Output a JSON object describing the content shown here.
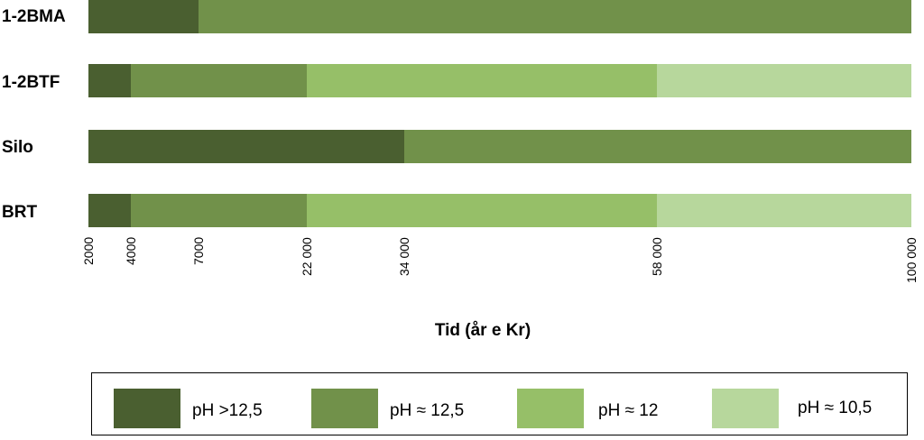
{
  "chart_data": {
    "type": "bar",
    "orientation": "horizontal-stacked-timeline",
    "xlabel": "Tid (år e Kr)",
    "x_scale": "log",
    "xlim": [
      2000,
      100000
    ],
    "x_ticks": [
      {
        "value": 2000,
        "label": "2000"
      },
      {
        "value": 4000,
        "label": "4000"
      },
      {
        "value": 7000,
        "label": "7000"
      },
      {
        "value": 22000,
        "label": "22 000"
      },
      {
        "value": 34000,
        "label": "34 000"
      },
      {
        "value": 58000,
        "label": "58 000"
      },
      {
        "value": 100000,
        "label": "100 000"
      }
    ],
    "categories": [
      "1-2BMA",
      "1-2BTF",
      "Silo",
      "BRT"
    ],
    "legend": {
      "placement": "bottom",
      "entries": [
        {
          "label": "pH >12,5",
          "color": "#4a5f30"
        },
        {
          "label": "pH ≈ 12,5",
          "color": "#71914a"
        },
        {
          "label": "pH ≈ 12",
          "color": "#96bf68"
        },
        {
          "label": "pH ≈ 10,5",
          "color": "#b7d79c"
        }
      ]
    },
    "bars": [
      {
        "category": "1-2BMA",
        "segments": [
          {
            "from": 2000,
            "to": 7000,
            "level": 0
          },
          {
            "from": 7000,
            "to": 100000,
            "level": 1
          }
        ]
      },
      {
        "category": "1-2BTF",
        "segments": [
          {
            "from": 2000,
            "to": 4000,
            "level": 0
          },
          {
            "from": 4000,
            "to": 22000,
            "level": 1
          },
          {
            "from": 22000,
            "to": 58000,
            "level": 2
          },
          {
            "from": 58000,
            "to": 100000,
            "level": 3
          }
        ]
      },
      {
        "category": "Silo",
        "segments": [
          {
            "from": 2000,
            "to": 34000,
            "level": 0
          },
          {
            "from": 34000,
            "to": 100000,
            "level": 1
          }
        ]
      },
      {
        "category": "BRT",
        "segments": [
          {
            "from": 2000,
            "to": 4000,
            "level": 0
          },
          {
            "from": 4000,
            "to": 22000,
            "level": 1
          },
          {
            "from": 22000,
            "to": 58000,
            "level": 2
          },
          {
            "from": 58000,
            "to": 100000,
            "level": 3
          }
        ]
      }
    ]
  }
}
